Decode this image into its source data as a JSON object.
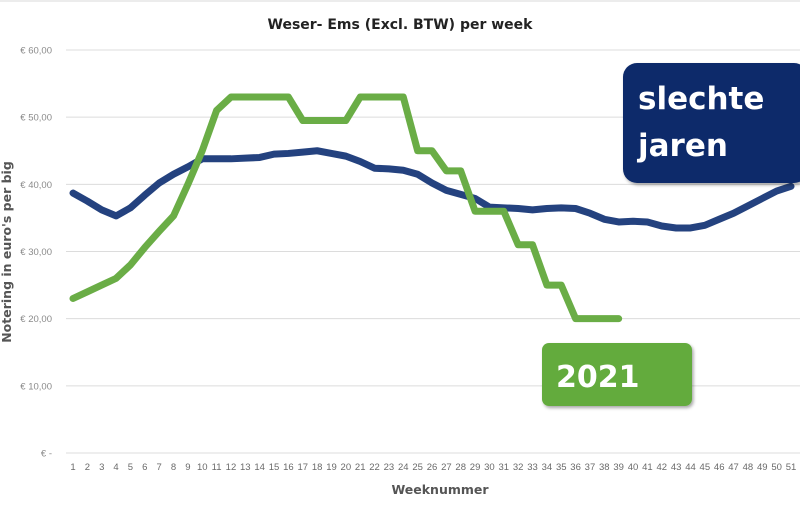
{
  "chart_data": {
    "type": "line",
    "title": "Weser- Ems (Excl. BTW) per week",
    "xlabel": "Weeknummer",
    "ylabel": "Notering in euro's per big",
    "ylim": [
      0,
      60
    ],
    "yticks": [
      0,
      10,
      20,
      30,
      40,
      50,
      60
    ],
    "ytick_labels": [
      "€ -",
      "€ 10,00",
      "€ 20,00",
      "€ 30,00",
      "€ 40,00",
      "€ 50,00",
      "€ 60,00"
    ],
    "grid": true,
    "x": [
      1,
      2,
      3,
      4,
      5,
      6,
      7,
      8,
      9,
      10,
      11,
      12,
      13,
      14,
      15,
      16,
      17,
      18,
      19,
      20,
      21,
      22,
      23,
      24,
      25,
      26,
      27,
      28,
      29,
      30,
      31,
      32,
      33,
      34,
      35,
      36,
      37,
      38,
      39,
      40,
      41,
      42,
      43,
      44,
      45,
      46,
      47,
      48,
      49,
      50,
      51
    ],
    "x_tick_labels": [
      "1",
      "2",
      "3",
      "4",
      "5",
      "6",
      "7",
      "8",
      "9",
      "10",
      "11",
      "12",
      "13",
      "14",
      "15",
      "16",
      "17",
      "18",
      "19",
      "20",
      "21",
      "22",
      "23",
      "24",
      "25",
      "26",
      "27",
      "28",
      "29",
      "30",
      "31",
      "32",
      "33",
      "34",
      "35",
      "36",
      "37",
      "38",
      "39",
      "40",
      "41",
      "42",
      "43",
      "44",
      "45",
      "46",
      "47",
      "48",
      "49",
      "50",
      "51"
    ],
    "series": [
      {
        "name": "slechte jaren",
        "color": "#24427f",
        "values": [
          38.7,
          37.5,
          36.2,
          35.3,
          36.5,
          38.4,
          40.2,
          41.5,
          42.6,
          43.8,
          43.8,
          43.8,
          43.9,
          44.0,
          44.5,
          44.6,
          44.8,
          45.0,
          44.6,
          44.2,
          43.4,
          42.4,
          42.3,
          42.1,
          41.5,
          40.2,
          39.1,
          38.5,
          37.9,
          36.6,
          36.5,
          36.4,
          36.2,
          36.4,
          36.5,
          36.4,
          35.7,
          34.8,
          34.4,
          34.5,
          34.4,
          33.8,
          33.5,
          33.5,
          33.9,
          34.8,
          35.7,
          36.8,
          37.9,
          39.0,
          39.7
        ]
      },
      {
        "name": "2021",
        "color": "#6aad46",
        "values": [
          23.0,
          24.0,
          25.0,
          26.0,
          28.0,
          30.6,
          33.0,
          35.3,
          40.0,
          45.0,
          51.0,
          53.0,
          53.0,
          53.0,
          53.0,
          53.0,
          49.5,
          49.5,
          49.5,
          49.5,
          53.0,
          53.0,
          53.0,
          53.0,
          45.0,
          45.0,
          42.0,
          42.0,
          36.0,
          36.0,
          36.0,
          31.0,
          31.0,
          25.0,
          25.0,
          20.0,
          20.0,
          20.0,
          20.0
        ]
      }
    ],
    "annotations": [
      {
        "text_lines": [
          "slechte",
          "jaren"
        ],
        "background": "#0b2a6b",
        "refers_to": "slechte jaren"
      },
      {
        "text_lines": [
          "2021"
        ],
        "background": "#64ab3c",
        "refers_to": "2021"
      }
    ],
    "legend": "none"
  }
}
